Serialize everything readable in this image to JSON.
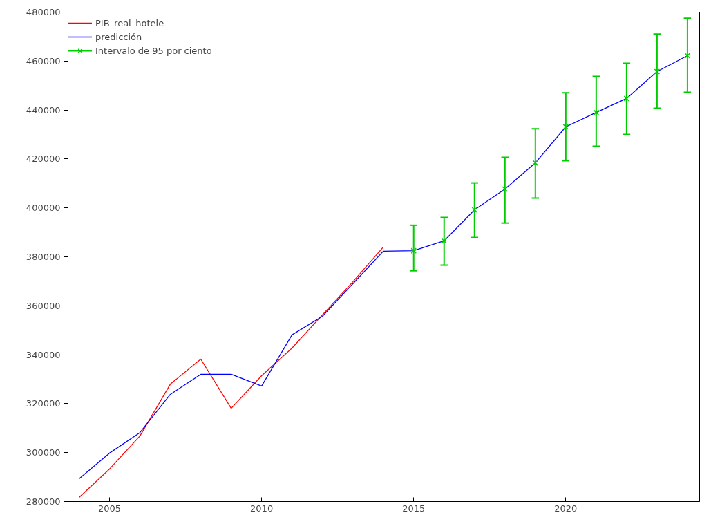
{
  "chart_data": {
    "type": "line",
    "x": [
      2004,
      2005,
      2006,
      2007,
      2008,
      2009,
      2010,
      2011,
      2012,
      2013,
      2014,
      2015,
      2016,
      2017,
      2018,
      2019,
      2020,
      2021,
      2022,
      2023,
      2024
    ],
    "series": [
      {
        "name": "PIB_real_hotele",
        "color": "#ff0000",
        "x": [
          2004,
          2005,
          2006,
          2007,
          2008,
          2009,
          2010,
          2011,
          2012,
          2013,
          2014
        ],
        "values": [
          281700,
          293300,
          306800,
          328000,
          338200,
          318100,
          331400,
          342700,
          356300,
          369800,
          384000
        ]
      },
      {
        "name": "predicción",
        "color": "#0000ff",
        "values": [
          289300,
          299800,
          308200,
          323800,
          332000,
          332000,
          327200,
          348100,
          355700,
          369000,
          382300,
          382500,
          386500,
          399200,
          407700,
          418400,
          433100,
          439000,
          444700,
          455700,
          462200
        ]
      },
      {
        "name": "Intervalo de 95 por ciento",
        "color": "#00cc00",
        "type": "scatter",
        "marker": "cross",
        "x": [
          2015,
          2016,
          2017,
          2018,
          2019,
          2020,
          2021,
          2022,
          2023,
          2024
        ],
        "values": [
          382500,
          386500,
          399200,
          407700,
          418400,
          433100,
          439000,
          444700,
          455700,
          462200
        ],
        "errors": [
          [
            374300,
            392900
          ],
          [
            376600,
            396100
          ],
          [
            387900,
            410200
          ],
          [
            393800,
            420700
          ],
          [
            404000,
            432300
          ],
          [
            419300,
            447000
          ],
          [
            425200,
            453700
          ],
          [
            430000,
            459100
          ],
          [
            440700,
            471000
          ],
          [
            447200,
            477500
          ]
        ]
      }
    ],
    "xlim": [
      2003.5,
      2024.4
    ],
    "xticks": [
      2005,
      2010,
      2015,
      2020
    ],
    "ylim": [
      280000,
      480000
    ],
    "yticks": [
      280000,
      300000,
      320000,
      340000,
      360000,
      380000,
      400000,
      420000,
      440000,
      460000,
      480000
    ],
    "grid": false,
    "legend": "top left"
  }
}
